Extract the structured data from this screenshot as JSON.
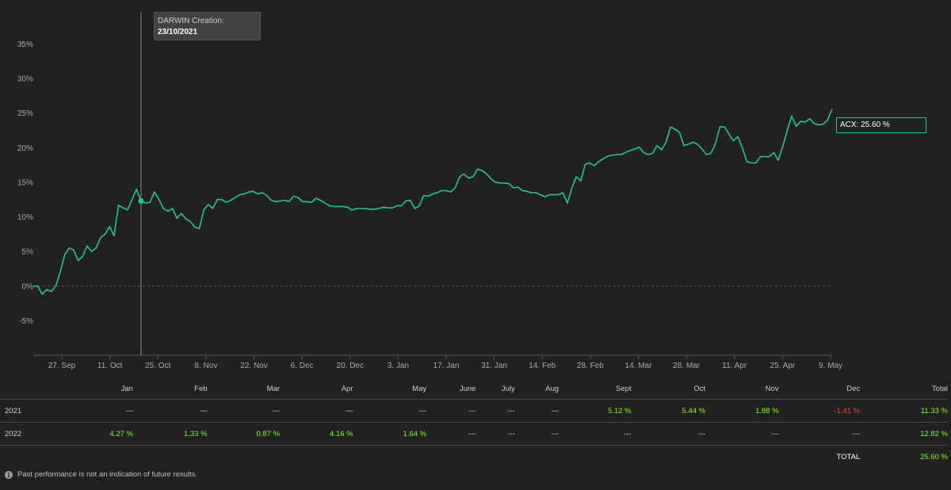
{
  "chart_data": {
    "type": "line",
    "x_tick_labels": [
      "27. Sep",
      "11. Oct",
      "25. Oct",
      "8. Nov",
      "22. Nov",
      "6. Dec",
      "20. Dec",
      "3. Jan",
      "17. Jan",
      "31. Jan",
      "14. Feb",
      "28. Feb",
      "14. Mar",
      "28. Mar",
      "11. Apr",
      "25. Apr",
      "9. May"
    ],
    "y_tick_labels": [
      "-5%",
      "0%",
      "5%",
      "10%",
      "15%",
      "20%",
      "25%",
      "30%",
      "35%"
    ],
    "ylim": [
      -10,
      37
    ],
    "series": [
      {
        "name": "ACX",
        "color": "#1fc98a",
        "values": [
          0,
          0,
          -1.2,
          -0.5,
          -0.8,
          0,
          2,
          4.5,
          5.5,
          5.2,
          3.7,
          4.3,
          5.8,
          5,
          5.5,
          7,
          7.5,
          8.6,
          7.3,
          11.7,
          11.3,
          11,
          12.5,
          14,
          12.3,
          12,
          12.1,
          13.6,
          12.5,
          11.2,
          10.8,
          11.2,
          9.8,
          10.5,
          9.7,
          9.3,
          8.5,
          8.3,
          11,
          11.8,
          11.2,
          12.5,
          12.5,
          12.1,
          12.4,
          12.8,
          13.2,
          13.3,
          13.6,
          13.7,
          13.3,
          13.5,
          13.1,
          12.4,
          12.2,
          12.3,
          12.4,
          12.2,
          13,
          12.8,
          12.2,
          12.2,
          12.1,
          12.7,
          12.4,
          12,
          11.6,
          11.5,
          11.5,
          11.5,
          11.4,
          11,
          11.2,
          11.2,
          11.2,
          11.1,
          11.1,
          11.2,
          11.4,
          11.3,
          11.3,
          11.6,
          11.6,
          12.3,
          12.4,
          11.2,
          11.6,
          13.1,
          13,
          13.3,
          13.5,
          13.8,
          13.8,
          13.6,
          14.2,
          15.8,
          16.2,
          15.6,
          15.8,
          16.9,
          16.7,
          16.2,
          15.5,
          15,
          14.9,
          14.9,
          14.8,
          14.2,
          14.3,
          13.8,
          13.7,
          13.5,
          13.5,
          13.2,
          12.9,
          13.2,
          13.2,
          13.2,
          13.5,
          12,
          14.2,
          15.8,
          15.2,
          17.6,
          17.8,
          17.4,
          18,
          18.4,
          18.8,
          18.9,
          19,
          19,
          19.3,
          19.6,
          19.8,
          20.1,
          19.3,
          19,
          19.2,
          20.3,
          19.7,
          20.8,
          23,
          22.7,
          22.2,
          20.3,
          20.5,
          20.8,
          20.5,
          19.8,
          19,
          19.2,
          20.6,
          23,
          23,
          22,
          21,
          21.6,
          20,
          18,
          17.8,
          17.8,
          18.7,
          18.7,
          18.7,
          19.3,
          18.2,
          20.2,
          22.5,
          24.6,
          23.1,
          23.8,
          23.7,
          24.2,
          23.5,
          23.3,
          23.4,
          24,
          25.6
        ]
      }
    ],
    "annotation": {
      "label": "DARWIN Creation:",
      "date": "23/10/2021"
    },
    "end_label": "ACX: 25.60 %",
    "grid": false
  },
  "table": {
    "headers": [
      "Jan",
      "Feb",
      "Mar",
      "Apr",
      "May",
      "June",
      "July",
      "Aug",
      "Sept",
      "Oct",
      "Nov",
      "Dec",
      "Total"
    ],
    "rows": [
      {
        "year": "2021",
        "cells": [
          "---",
          "---",
          "---",
          "---",
          "---",
          "---",
          "---",
          "---",
          "5.12 %",
          "5.44 %",
          "1.88 %",
          "-1.41 %",
          "11.33 %"
        ]
      },
      {
        "year": "2022",
        "cells": [
          "4.27 %",
          "1.33 %",
          "0.87 %",
          "4.16 %",
          "1.64 %",
          "---",
          "---",
          "---",
          "---",
          "---",
          "---",
          "---",
          "12.82 %"
        ]
      }
    ],
    "total_label": "TOTAL",
    "total_value": "25.60 %"
  },
  "colors": {
    "positive": "#7fff00",
    "negative": "#ff3b3b",
    "line": "#1fc98a"
  },
  "icons": {
    "disclaimer": "info-icon"
  },
  "disclaimer": "Past performance is not an indication of future results."
}
